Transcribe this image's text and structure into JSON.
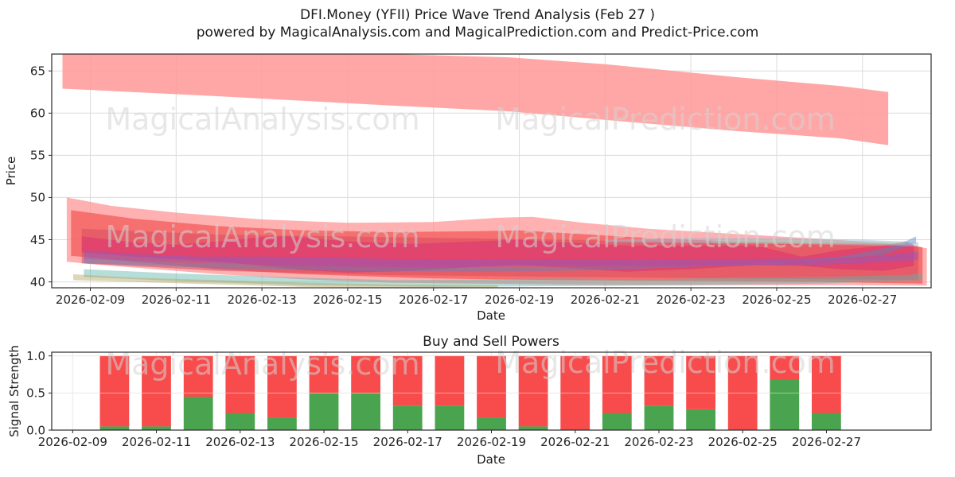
{
  "title": {
    "line1": "DFI.Money (YFII) Price Wave Trend Analysis (Feb 27 )",
    "line2": "powered by MagicalAnalysis.com and MagicalPrediction.com and Predict-Price.com"
  },
  "watermarks": {
    "left_text": "MagicalAnalysis.com",
    "right_text": "MagicalPrediction.com",
    "color": "#d3d3d3"
  },
  "chart_data": [
    {
      "type": "area",
      "name": "price-wave-trend",
      "ylabel": "Price",
      "xlabel": "Date",
      "ylim": [
        39.3,
        67.0
      ],
      "yticks": [
        40,
        45,
        50,
        55,
        60,
        65
      ],
      "xtick_labels": [
        "2026-02-09",
        "2026-02-11",
        "2026-02-13",
        "2026-02-15",
        "2026-02-17",
        "2026-02-19",
        "2026-02-21",
        "2026-02-23",
        "2026-02-25",
        "2026-02-27"
      ],
      "xtick_days": [
        1,
        3,
        5,
        7,
        9,
        11,
        13,
        15,
        17,
        19
      ],
      "xlim_days": [
        0.1,
        20.6
      ],
      "grid": true,
      "bands": [
        {
          "name": "upper-forecast-band",
          "color": "#ff9898",
          "opacity": 0.85,
          "points": [
            [
              0.35,
              67.6
            ],
            [
              4,
              67.4
            ],
            [
              8,
              67.0
            ],
            [
              10.8,
              66.6
            ],
            [
              13,
              65.8
            ],
            [
              16,
              64.3
            ],
            [
              18.5,
              63.2
            ],
            [
              19.6,
              62.5
            ],
            [
              19.6,
              56.2
            ],
            [
              18.5,
              57.0
            ],
            [
              16,
              57.9
            ],
            [
              13,
              59.2
            ],
            [
              10.8,
              60.2
            ],
            [
              8,
              60.9
            ],
            [
              4,
              62.0
            ],
            [
              0.35,
              62.9
            ]
          ]
        },
        {
          "name": "outer-pink-band",
          "color": "#ff8f8f",
          "opacity": 0.7,
          "points": [
            [
              0.45,
              50.0
            ],
            [
              1.5,
              49.0
            ],
            [
              3,
              48.2
            ],
            [
              5,
              47.4
            ],
            [
              7,
              47.0
            ],
            [
              9,
              47.1
            ],
            [
              10.5,
              47.6
            ],
            [
              11.3,
              47.7
            ],
            [
              12.5,
              47.0
            ],
            [
              14,
              46.3
            ],
            [
              16,
              45.7
            ],
            [
              18,
              45.1
            ],
            [
              19.5,
              44.6
            ],
            [
              20.5,
              44.0
            ],
            [
              20.5,
              39.55
            ],
            [
              19,
              39.6
            ],
            [
              16,
              39.6
            ],
            [
              13,
              39.6
            ],
            [
              10,
              39.8
            ],
            [
              8,
              39.9
            ],
            [
              6,
              40.3
            ],
            [
              4,
              40.9
            ],
            [
              2.5,
              41.5
            ],
            [
              1,
              42.1
            ],
            [
              0.45,
              42.4
            ]
          ]
        },
        {
          "name": "mid-red-band",
          "color": "#f25555",
          "opacity": 0.7,
          "points": [
            [
              0.55,
              48.5
            ],
            [
              2,
              47.5
            ],
            [
              4,
              46.6
            ],
            [
              6,
              46.1
            ],
            [
              8,
              45.9
            ],
            [
              10,
              46.0
            ],
            [
              11,
              46.1
            ],
            [
              12,
              45.8
            ],
            [
              14,
              45.2
            ],
            [
              16,
              44.8
            ],
            [
              18,
              44.6
            ],
            [
              20,
              44.5
            ],
            [
              20.4,
              44.1
            ],
            [
              20.4,
              39.8
            ],
            [
              18,
              40.0
            ],
            [
              15,
              40.1
            ],
            [
              12,
              40.2
            ],
            [
              9,
              40.4
            ],
            [
              6,
              40.9
            ],
            [
              4,
              41.5
            ],
            [
              2,
              42.4
            ],
            [
              0.55,
              43.1
            ]
          ]
        },
        {
          "name": "deep-red-band",
          "color": "#d94f63",
          "opacity": 0.55,
          "points": [
            [
              0.8,
              46.3
            ],
            [
              4,
              45.6
            ],
            [
              8,
              45.3
            ],
            [
              12,
              45.0
            ],
            [
              16,
              44.6
            ],
            [
              20.3,
              44.2
            ],
            [
              20.3,
              40.2
            ],
            [
              16,
              40.4
            ],
            [
              12,
              40.6
            ],
            [
              8,
              40.8
            ],
            [
              4,
              41.3
            ],
            [
              0.8,
              42.2
            ]
          ]
        },
        {
          "name": "crimson-wave-band",
          "color": "#dd3470",
          "opacity": 0.6,
          "points": [
            [
              0.8,
              45.4
            ],
            [
              2,
              44.7
            ],
            [
              3,
              44.4
            ],
            [
              4,
              44.8
            ],
            [
              5,
              45.3
            ],
            [
              5.6,
              45.4
            ],
            [
              7,
              44.8
            ],
            [
              8.5,
              44.5
            ],
            [
              10,
              44.8
            ],
            [
              11,
              45.0
            ],
            [
              12,
              44.7
            ],
            [
              13.5,
              44.3
            ],
            [
              15,
              44.3
            ],
            [
              16.5,
              44.3
            ],
            [
              17.6,
              43.0
            ],
            [
              18.5,
              43.8
            ],
            [
              19.5,
              44.3
            ],
            [
              20,
              44.8
            ],
            [
              20.2,
              44.4
            ],
            [
              20.2,
              41.9
            ],
            [
              19.5,
              41.3
            ],
            [
              18.5,
              41.5
            ],
            [
              17.6,
              41.9
            ],
            [
              16.5,
              42.0
            ],
            [
              15,
              41.5
            ],
            [
              13.5,
              41.2
            ],
            [
              12,
              41.7
            ],
            [
              11,
              42.0
            ],
            [
              10,
              41.8
            ],
            [
              8.5,
              41.3
            ],
            [
              7,
              41.1
            ],
            [
              6,
              41.4
            ],
            [
              5,
              41.9
            ],
            [
              4,
              42.4
            ],
            [
              3,
              42.7
            ],
            [
              2,
              43.0
            ],
            [
              0.8,
              43.5
            ]
          ]
        },
        {
          "name": "purple-band",
          "color": "#8e5bbf",
          "opacity": 0.5,
          "points": [
            [
              0.85,
              43.7
            ],
            [
              2,
              43.3
            ],
            [
              3.5,
              43.0
            ],
            [
              5,
              43.0
            ],
            [
              6.5,
              42.9
            ],
            [
              8,
              42.7
            ],
            [
              10,
              42.6
            ],
            [
              12,
              42.7
            ],
            [
              14,
              42.6
            ],
            [
              16,
              42.7
            ],
            [
              18,
              42.8
            ],
            [
              19.5,
              43.1
            ],
            [
              20.3,
              43.6
            ],
            [
              20.3,
              42.6
            ],
            [
              18,
              42.0
            ],
            [
              15,
              41.9
            ],
            [
              12,
              41.9
            ],
            [
              9,
              41.7
            ],
            [
              6.5,
              41.9
            ],
            [
              4,
              42.2
            ],
            [
              2,
              42.5
            ],
            [
              0.85,
              42.7
            ]
          ]
        },
        {
          "name": "steel-blue-band",
          "color": "#5b86c0",
          "opacity": 0.45,
          "points": [
            [
              0.85,
              42.8
            ],
            [
              3,
              42.3
            ],
            [
              6,
              41.9
            ],
            [
              9,
              41.7
            ],
            [
              12,
              41.8
            ],
            [
              15,
              41.9
            ],
            [
              17,
              42.2
            ],
            [
              18.5,
              43.0
            ],
            [
              19.8,
              44.3
            ],
            [
              20.25,
              45.4
            ],
            [
              20.25,
              44.6
            ],
            [
              19.5,
              43.2
            ],
            [
              18,
              42.6
            ],
            [
              16,
              42.0
            ],
            [
              13,
              41.4
            ],
            [
              10,
              41.2
            ],
            [
              7,
              41.3
            ],
            [
              4,
              41.6
            ],
            [
              2,
              42.0
            ],
            [
              0.85,
              42.2
            ]
          ]
        },
        {
          "name": "light-blue-band",
          "color": "#9bb8d8",
          "opacity": 0.5,
          "points": [
            [
              13,
              45.0
            ],
            [
              15,
              45.2
            ],
            [
              17,
              45.2
            ],
            [
              19,
              45.0
            ],
            [
              20.3,
              44.7
            ],
            [
              20.3,
              44.2
            ],
            [
              19,
              44.4
            ],
            [
              17,
              44.5
            ],
            [
              15,
              44.6
            ],
            [
              13,
              44.7
            ]
          ]
        },
        {
          "name": "light-green-band",
          "color": "#9fd0a8",
          "opacity": 0.4,
          "points": [
            [
              15.5,
              44.9
            ],
            [
              17,
              45.0
            ],
            [
              18.5,
              44.9
            ],
            [
              20,
              44.7
            ],
            [
              20,
              44.4
            ],
            [
              18.5,
              44.5
            ],
            [
              17,
              44.6
            ],
            [
              15.5,
              44.6
            ]
          ]
        },
        {
          "name": "teal-band",
          "color": "#5fb3ab",
          "opacity": 0.45,
          "points": [
            [
              0.85,
              41.5
            ],
            [
              3,
              41.0
            ],
            [
              6,
              40.5
            ],
            [
              8,
              40.2
            ],
            [
              10,
              40.3
            ],
            [
              12,
              40.4
            ],
            [
              14,
              40.3
            ],
            [
              16,
              40.5
            ],
            [
              18,
              40.6
            ],
            [
              20,
              40.8
            ],
            [
              20.4,
              41.0
            ],
            [
              20.4,
              40.2
            ],
            [
              18,
              39.8
            ],
            [
              15,
              39.6
            ],
            [
              12,
              39.5
            ],
            [
              9,
              39.4
            ],
            [
              6,
              39.6
            ],
            [
              3,
              40.1
            ],
            [
              0.85,
              40.6
            ]
          ]
        },
        {
          "name": "olive-band",
          "color": "#b3a55f",
          "opacity": 0.45,
          "points": [
            [
              0.6,
              40.9
            ],
            [
              2,
              40.5
            ],
            [
              4,
              40.2
            ],
            [
              6,
              39.9
            ],
            [
              8,
              39.7
            ],
            [
              10.5,
              39.6
            ],
            [
              10.5,
              39.31
            ],
            [
              8,
              39.31
            ],
            [
              6,
              39.4
            ],
            [
              4,
              39.7
            ],
            [
              2,
              40.0
            ],
            [
              0.6,
              40.2
            ]
          ]
        }
      ]
    },
    {
      "type": "bar",
      "name": "buy-sell-powers",
      "title": "Buy and Sell Powers",
      "ylabel": "Signal Strength",
      "xlabel": "Date",
      "ylim": [
        0,
        1.05
      ],
      "ytick_labels": [
        "0.0",
        "0.5",
        "1.0"
      ],
      "ytick_values": [
        0,
        0.5,
        1.0
      ],
      "xtick_labels": [
        "2026-02-09",
        "2026-02-11",
        "2026-02-13",
        "2026-02-15",
        "2026-02-17",
        "2026-02-19",
        "2026-02-21",
        "2026-02-23",
        "2026-02-25",
        "2026-02-27"
      ],
      "xtick_days": [
        1,
        3,
        5,
        7,
        9,
        11,
        13,
        15,
        17,
        19
      ],
      "xlim_days": [
        0.5,
        21.5
      ],
      "grid": true,
      "bar_dates": [
        "2026-02-10",
        "2026-02-11",
        "2026-02-12",
        "2026-02-13",
        "2026-02-14",
        "2026-02-15",
        "2026-02-16",
        "2026-02-17",
        "2026-02-18",
        "2026-02-19",
        "2026-02-20",
        "2026-02-21",
        "2026-02-22",
        "2026-02-23",
        "2026-02-24",
        "2026-02-25",
        "2026-02-26",
        "2026-02-27"
      ],
      "bar_days": [
        2,
        3,
        4,
        5,
        6,
        7,
        8,
        9,
        10,
        11,
        12,
        13,
        14,
        15,
        16,
        17,
        18,
        19
      ],
      "series": [
        {
          "name": "buy",
          "color": "#4aa34e",
          "values": [
            0.05,
            0.05,
            0.45,
            0.23,
            0.17,
            0.5,
            0.5,
            0.33,
            0.33,
            0.17,
            0.05,
            0.0,
            0.23,
            0.33,
            0.28,
            0.0,
            0.68,
            0.23
          ]
        },
        {
          "name": "sell",
          "color": "#f84c4c",
          "values": [
            0.95,
            0.95,
            0.55,
            0.77,
            0.83,
            0.5,
            0.5,
            0.67,
            0.67,
            0.83,
            0.95,
            1.0,
            0.77,
            0.67,
            0.72,
            1.0,
            0.32,
            0.77
          ]
        }
      ]
    }
  ]
}
